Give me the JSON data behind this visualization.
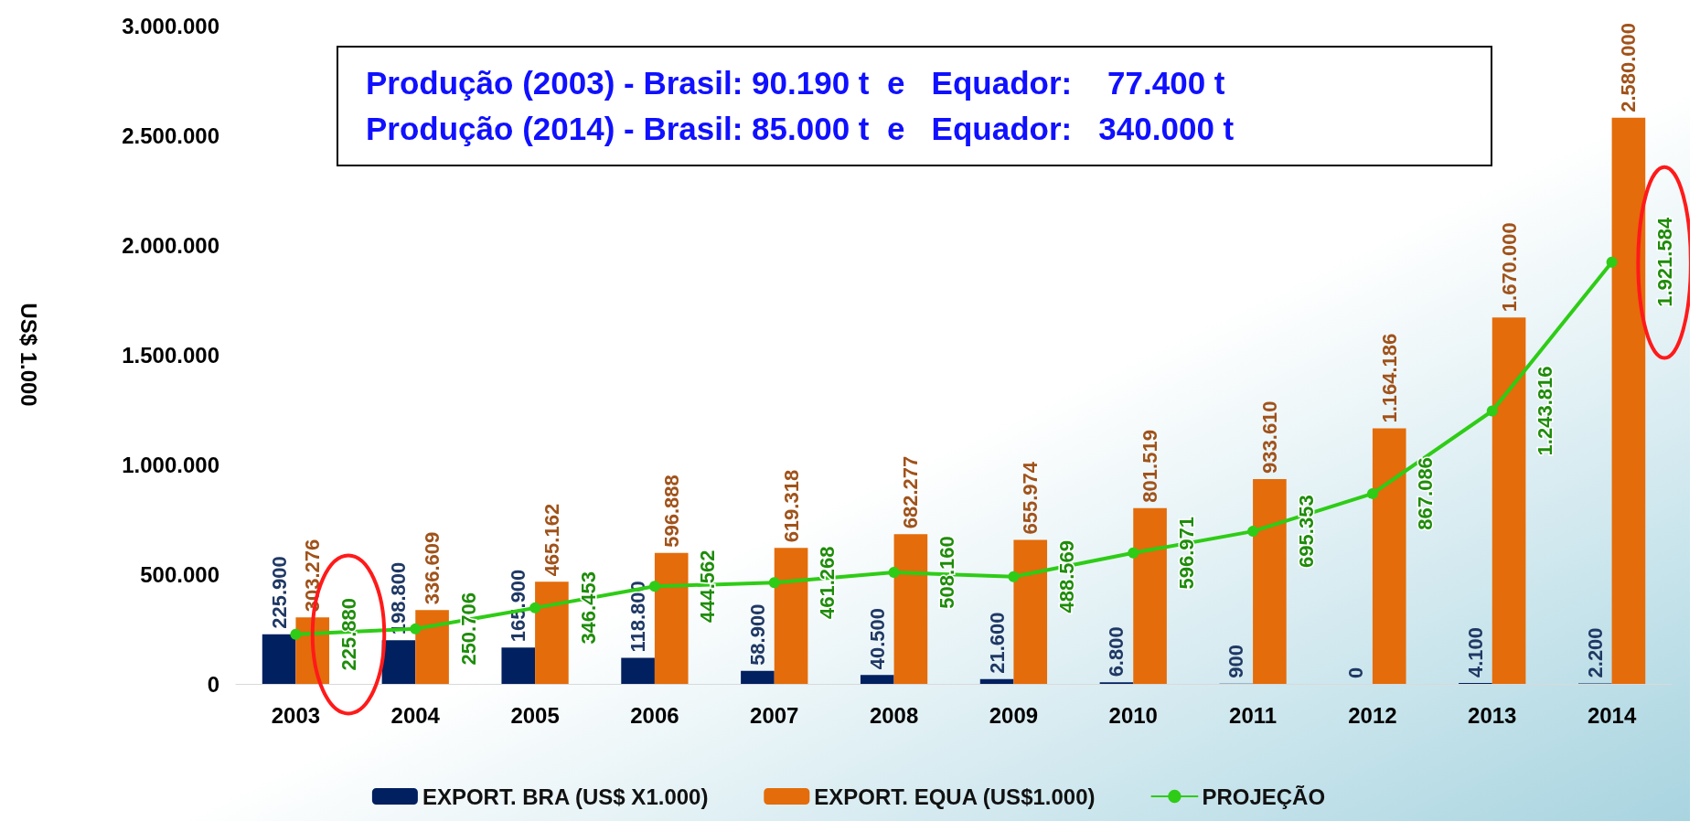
{
  "chart_data": {
    "type": "bar",
    "ylabel": "US$ 1.000",
    "categories": [
      "2003",
      "2004",
      "2005",
      "2006",
      "2007",
      "2008",
      "2009",
      "2010",
      "2011",
      "2012",
      "2013",
      "2014"
    ],
    "series": [
      {
        "name": "EXPORT. BRA (US$ X1.000)",
        "color": "#002060",
        "values": [
          225900,
          198800,
          165900,
          118800,
          58900,
          40500,
          21600,
          6800,
          900,
          0,
          4100,
          2200
        ],
        "value_labels": [
          "225.900",
          "198.800",
          "165.900",
          "118.800",
          "58.900",
          "40.500",
          "21.600",
          "6.800",
          "900",
          "0",
          "4.100",
          "2.200"
        ]
      },
      {
        "name": "EXPORT. EQUA (US$1.000)",
        "color": "#e46c0a",
        "values": [
          303276,
          336609,
          465162,
          596888,
          619318,
          682277,
          655974,
          801519,
          933610,
          1164186,
          1670000,
          2580000
        ],
        "value_labels": [
          "303.276",
          "336.609",
          "465.162",
          "596.888",
          "619.318",
          "682.277",
          "655.974",
          "801.519",
          "933.610",
          "1.164.186",
          "1.670.000",
          "2.580.000"
        ]
      },
      {
        "name": "PROJEÇÃO",
        "type": "line",
        "color": "#2ecc16",
        "values": [
          225880,
          250706,
          346453,
          444562,
          461268,
          508160,
          488569,
          596971,
          695353,
          867086,
          1243816,
          1921584
        ],
        "value_labels": [
          "225.880",
          "250.706",
          "346.453",
          "444.562",
          "461.268",
          "508.160",
          "488.569",
          "596.971",
          "695.353",
          "867.086",
          "1.243.816",
          "1.921.584"
        ]
      }
    ],
    "ylim": [
      0,
      3000000
    ],
    "yticks": [
      {
        "value": 0,
        "label": "0"
      },
      {
        "value": 500000,
        "label": "500.000"
      },
      {
        "value": 1000000,
        "label": "1.000.000"
      },
      {
        "value": 1500000,
        "label": "1.500.000"
      },
      {
        "value": 2000000,
        "label": "2.000.000"
      },
      {
        "value": 2500000,
        "label": "2.500.000"
      },
      {
        "value": 3000000,
        "label": "3.000.000"
      }
    ],
    "grid": false,
    "legend": "bottom",
    "marker": "circle",
    "line_style": "solid",
    "annotations": [
      "Produção (2003) - Brasil: 90.190 t  e   Equador:    77.400 t",
      "Produção (2014) - Brasil: 85.000 t  e   Equador:   340.000 t"
    ]
  }
}
